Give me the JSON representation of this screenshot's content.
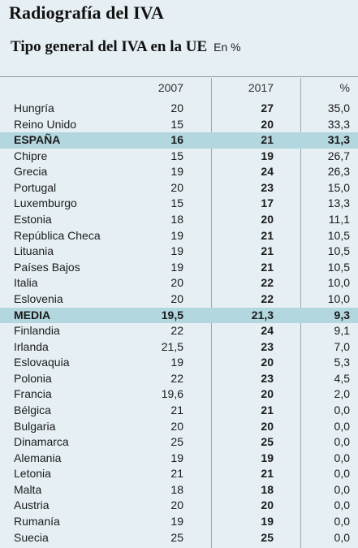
{
  "title": "Radiografía del IVA",
  "subtitle": "Tipo general del IVA en la UE",
  "unit": "En %",
  "chart_data": {
    "type": "table",
    "title": "Radiografía del IVA",
    "subtitle": "Tipo general del IVA en la UE",
    "unit": "En %",
    "columns": [
      "2007",
      "2017",
      "%"
    ],
    "highlight_rows": [
      "ESPAÑA",
      "MEDIA"
    ],
    "rows": [
      {
        "name": "Hungría",
        "v2007": "20",
        "v2017": "27",
        "pct": "35,0"
      },
      {
        "name": "Reino Unido",
        "v2007": "15",
        "v2017": "20",
        "pct": "33,3"
      },
      {
        "name": "ESPAÑA",
        "v2007": "16",
        "v2017": "21",
        "pct": "31,3"
      },
      {
        "name": "Chipre",
        "v2007": "15",
        "v2017": "19",
        "pct": "26,7"
      },
      {
        "name": "Grecia",
        "v2007": "19",
        "v2017": "24",
        "pct": "26,3"
      },
      {
        "name": "Portugal",
        "v2007": "20",
        "v2017": "23",
        "pct": "15,0"
      },
      {
        "name": "Luxemburgo",
        "v2007": "15",
        "v2017": "17",
        "pct": "13,3"
      },
      {
        "name": "Estonia",
        "v2007": "18",
        "v2017": "20",
        "pct": "11,1"
      },
      {
        "name": "República Checa",
        "v2007": "19",
        "v2017": "21",
        "pct": "10,5"
      },
      {
        "name": "Lituania",
        "v2007": "19",
        "v2017": "21",
        "pct": "10,5"
      },
      {
        "name": "Países Bajos",
        "v2007": "19",
        "v2017": "21",
        "pct": "10,5"
      },
      {
        "name": "Italia",
        "v2007": "20",
        "v2017": "22",
        "pct": "10,0"
      },
      {
        "name": "Eslovenia",
        "v2007": "20",
        "v2017": "22",
        "pct": "10,0"
      },
      {
        "name": "MEDIA",
        "v2007": "19,5",
        "v2017": "21,3",
        "pct": "9,3"
      },
      {
        "name": "Finlandia",
        "v2007": "22",
        "v2017": "24",
        "pct": "9,1"
      },
      {
        "name": "Irlanda",
        "v2007": "21,5",
        "v2017": "23",
        "pct": "7,0"
      },
      {
        "name": "Eslovaquia",
        "v2007": "19",
        "v2017": "20",
        "pct": "5,3"
      },
      {
        "name": "Polonia",
        "v2007": "22",
        "v2017": "23",
        "pct": "4,5"
      },
      {
        "name": "Francia",
        "v2007": "19,6",
        "v2017": "20",
        "pct": "2,0"
      },
      {
        "name": "Bélgica",
        "v2007": "21",
        "v2017": "21",
        "pct": "0,0"
      },
      {
        "name": "Bulgaria",
        "v2007": "20",
        "v2017": "20",
        "pct": "0,0"
      },
      {
        "name": "Dinamarca",
        "v2007": "25",
        "v2017": "25",
        "pct": "0,0"
      },
      {
        "name": "Alemania",
        "v2007": "19",
        "v2017": "19",
        "pct": "0,0"
      },
      {
        "name": "Letonia",
        "v2007": "21",
        "v2017": "21",
        "pct": "0,0"
      },
      {
        "name": "Malta",
        "v2007": "18",
        "v2017": "18",
        "pct": "0,0"
      },
      {
        "name": "Austria",
        "v2007": "20",
        "v2017": "20",
        "pct": "0,0"
      },
      {
        "name": "Rumanía",
        "v2007": "19",
        "v2017": "19",
        "pct": "0,0"
      },
      {
        "name": "Suecia",
        "v2007": "25",
        "v2017": "25",
        "pct": "0,0"
      }
    ]
  }
}
